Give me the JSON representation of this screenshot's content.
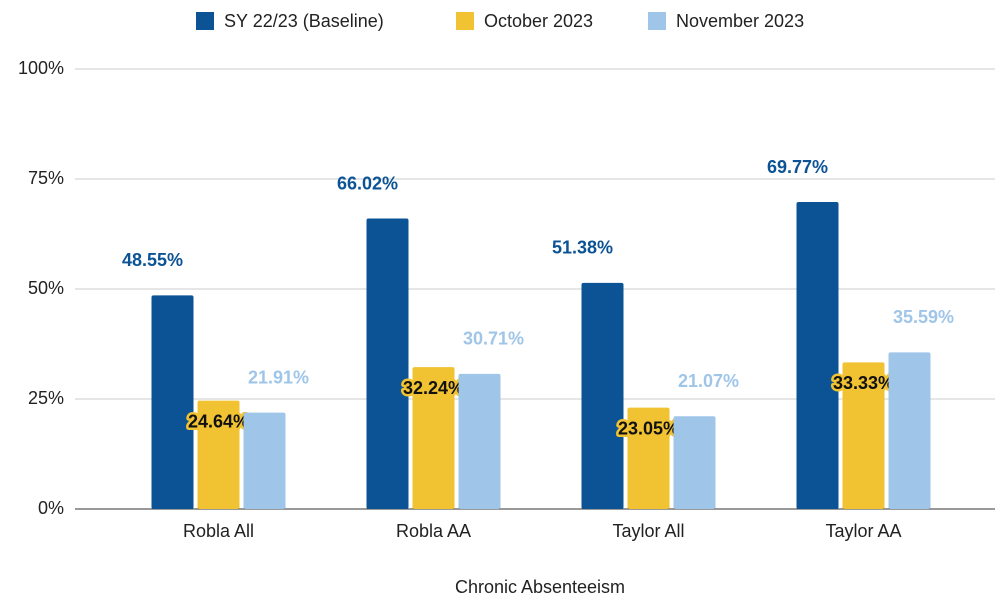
{
  "chart_data": {
    "type": "bar",
    "x_label": "Chronic Absenteeism",
    "categories": [
      "Robla All",
      "Robla AA",
      "Taylor All",
      "Taylor AA"
    ],
    "series": [
      {
        "name": "SY 22/23 (Baseline)",
        "color": "#0b5394",
        "values": [
          48.55,
          66.02,
          51.38,
          69.77
        ],
        "value_labels": [
          "48.55%",
          "66.02%",
          "51.38%",
          "69.77%"
        ]
      },
      {
        "name": "October 2023",
        "color": "#f1c232",
        "values": [
          24.64,
          32.24,
          23.05,
          33.33
        ],
        "value_labels": [
          "24.64%",
          "32.24%",
          "23.05%",
          "33.33%"
        ]
      },
      {
        "name": "November 2023",
        "color": "#9fc5e8",
        "values": [
          21.91,
          30.71,
          21.07,
          35.59
        ],
        "value_labels": [
          "21.91%",
          "30.71%",
          "21.07%",
          "35.59%"
        ]
      }
    ],
    "ylim": [
      0,
      100
    ],
    "yticks": [
      {
        "value": 0,
        "label": "0%"
      },
      {
        "value": 25,
        "label": "25%"
      },
      {
        "value": 50,
        "label": "50%"
      },
      {
        "value": 75,
        "label": "75%"
      },
      {
        "value": 100,
        "label": "100%"
      }
    ],
    "grid": true,
    "legend": "top"
  }
}
